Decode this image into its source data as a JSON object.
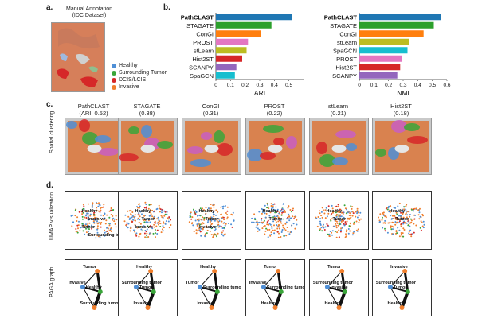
{
  "panels": {
    "a": "a.",
    "b": "b.",
    "c": "c.",
    "d": "d."
  },
  "panel_a": {
    "title_line1": "Manual Annotation",
    "title_line2": "(IDC Dataset)",
    "legend": [
      {
        "label": "Healthy",
        "color": "#4f8fd6"
      },
      {
        "label": "Surrounding Tumor",
        "color": "#3aa63a"
      },
      {
        "label": "DCIS/LCIS",
        "color": "#d62728"
      },
      {
        "label": "Invasive",
        "color": "#f07f2d"
      }
    ]
  },
  "chart_data": [
    {
      "type": "bar",
      "orientation": "horizontal",
      "xlabel": "ARI",
      "xlim": [
        0,
        0.6
      ],
      "xticks": [
        "0",
        "0.1",
        "0.2",
        "0.3",
        "0.4",
        "0.5"
      ],
      "categories": [
        "PathCLAST",
        "STAGATE",
        "ConGI",
        "PROST",
        "stLearn",
        "Hist2ST",
        "SCANPY",
        "SpaGCN"
      ],
      "values": [
        0.52,
        0.38,
        0.31,
        0.22,
        0.21,
        0.18,
        0.14,
        0.13
      ],
      "colors": [
        "#1f77b4",
        "#2ca02c",
        "#ff7f0e",
        "#e377c2",
        "#bcbd22",
        "#d62728",
        "#9467bd",
        "#17becf"
      ]
    },
    {
      "type": "bar",
      "orientation": "horizontal",
      "xlabel": "NMI",
      "xlim": [
        0,
        0.6
      ],
      "xticks": [
        "0",
        "0.1",
        "0.2",
        "0.3",
        "0.4",
        "0.5",
        "0.6"
      ],
      "categories": [
        "PathCLAST",
        "STAGATE",
        "ConGI",
        "stLearn",
        "SpaGCN",
        "PROST",
        "Hist2ST",
        "SCANPY"
      ],
      "values": [
        0.56,
        0.51,
        0.44,
        0.34,
        0.33,
        0.29,
        0.28,
        0.26
      ],
      "colors": [
        "#1f77b4",
        "#2ca02c",
        "#ff7f0e",
        "#bcbd22",
        "#17becf",
        "#e377c2",
        "#d62728",
        "#9467bd"
      ]
    }
  ],
  "panel_c": {
    "row_label": "Spatial clustering",
    "methods": [
      {
        "name": "PathCLAST",
        "score": "(ARI: 0.52)"
      },
      {
        "name": "STAGATE",
        "score": "(0.38)"
      },
      {
        "name": "ConGI",
        "score": "(0.31)"
      },
      {
        "name": "PROST",
        "score": "(0.22)"
      },
      {
        "name": "stLearn",
        "score": "(0.21)"
      },
      {
        "name": "Hist2ST",
        "score": "(0.18)"
      }
    ]
  },
  "panel_d": {
    "umap_label": "UMAP visualization",
    "paga_label": "PAGA graph",
    "umap_labels": [
      [
        "Healthy",
        "Invasive",
        "Tumor",
        "Surrounding tumor"
      ],
      [
        "Healthy",
        "Tumor",
        "Invasive"
      ],
      [
        "Healthy",
        "Tumor",
        "Invasive"
      ],
      [
        "Healthy",
        "Tumor"
      ],
      [
        "Healthy",
        "Tumor"
      ],
      [
        "Healthy",
        "Tumor"
      ]
    ],
    "paga_labels": [
      [
        "Tumor",
        "Invasive",
        "Healthy",
        "Surrounding tumor"
      ],
      [
        "Healthy",
        "Surrounding tumor",
        "Tumor",
        "Invasive"
      ],
      [
        "Healthy",
        "Tumor",
        "Surrounding tumor",
        "Invasive"
      ],
      [
        "Tumor",
        "Invasive",
        "Surrounding tumor",
        "Healthy"
      ],
      [
        "Tumor",
        "Surrounding tumor",
        "Invasive",
        "Healthy"
      ],
      [
        "Invasive",
        "Surrounding tumor",
        "Tumor",
        "Healthy"
      ]
    ]
  }
}
